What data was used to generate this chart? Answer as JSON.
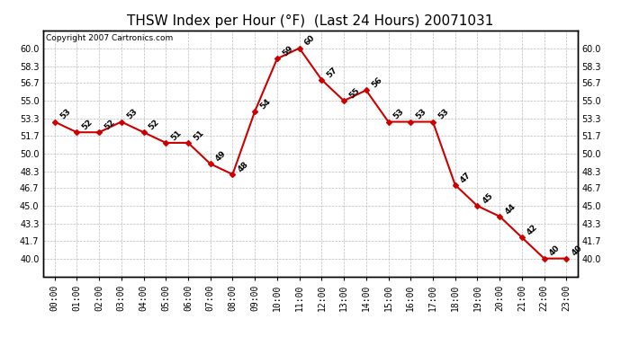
{
  "title": "THSW Index per Hour (°F)  (Last 24 Hours) 20071031",
  "copyright_text": "Copyright 2007 Cartronics.com",
  "hours": [
    "00:00",
    "01:00",
    "02:00",
    "03:00",
    "04:00",
    "05:00",
    "06:00",
    "07:00",
    "08:00",
    "09:00",
    "10:00",
    "11:00",
    "12:00",
    "13:00",
    "14:00",
    "15:00",
    "16:00",
    "17:00",
    "18:00",
    "19:00",
    "20:00",
    "21:00",
    "22:00",
    "23:00"
  ],
  "values": [
    53,
    52,
    52,
    53,
    52,
    51,
    51,
    49,
    48,
    54,
    59,
    60,
    57,
    55,
    56,
    53,
    53,
    53,
    47,
    45,
    44,
    42,
    40,
    40
  ],
  "line_color": "#cc0000",
  "marker_color": "#cc0000",
  "background_color": "#ffffff",
  "plot_bg_color": "#ffffff",
  "grid_color": "#bbbbbb",
  "ylim_min": 38.3,
  "ylim_max": 61.7,
  "yticks": [
    40.0,
    41.7,
    43.3,
    45.0,
    46.7,
    48.3,
    50.0,
    51.7,
    53.3,
    55.0,
    56.7,
    58.3,
    60.0
  ],
  "title_fontsize": 11,
  "label_fontsize": 6.5,
  "tick_fontsize": 7,
  "copyright_fontsize": 6.5
}
